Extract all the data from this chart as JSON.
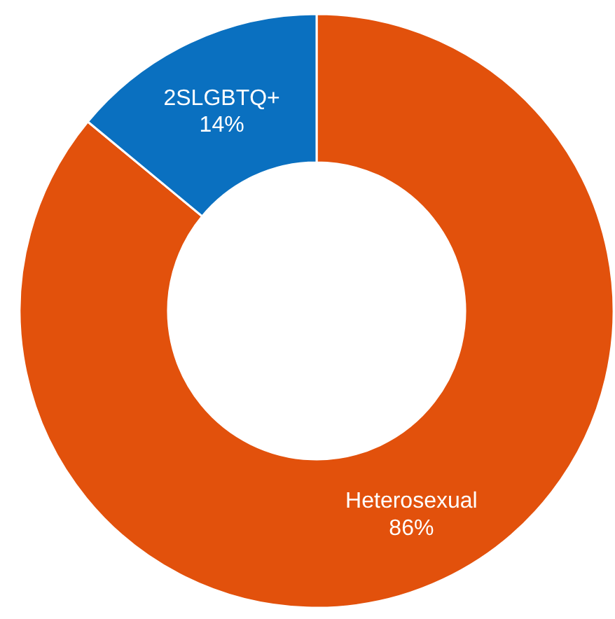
{
  "chart_data": {
    "type": "donut",
    "categories": [
      "Heterosexual",
      "2SLGBTQ+"
    ],
    "values": [
      86,
      14
    ],
    "value_labels": [
      "86%",
      "14%"
    ],
    "colors": [
      "#e2510c",
      "#0a70c0"
    ]
  }
}
